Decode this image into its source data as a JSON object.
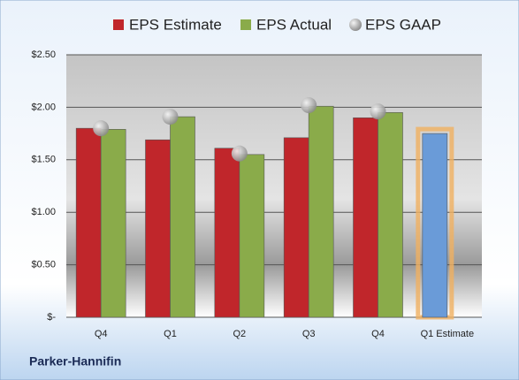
{
  "chart_data": {
    "type": "bar",
    "categories": [
      "Q4",
      "Q1",
      "Q2",
      "Q3",
      "Q4",
      "Q1 Estimate"
    ],
    "series": [
      {
        "name": "EPS Estimate",
        "color": "#c0262b",
        "colors": [
          "#c0262b",
          "#c0262b",
          "#c0262b",
          "#c0262b",
          "#c0262b",
          "#6a9bd8"
        ],
        "values": [
          1.8,
          1.69,
          1.61,
          1.71,
          1.9,
          1.75
        ]
      },
      {
        "name": "EPS Actual",
        "color": "#8aab4a",
        "values": [
          1.79,
          1.91,
          1.55,
          2.01,
          1.95,
          null
        ]
      },
      {
        "name": "EPS GAAP",
        "color": "#a8a8a8",
        "style": "marker",
        "values": [
          1.8,
          1.91,
          1.56,
          2.02,
          1.96,
          null
        ]
      }
    ],
    "ylim": [
      0,
      2.5
    ],
    "yticks": [
      {
        "value": 0,
        "label": "$-"
      },
      {
        "value": 0.5,
        "label": "$0.50"
      },
      {
        "value": 1,
        "label": "$1.00"
      },
      {
        "value": 1.5,
        "label": "$1.50"
      },
      {
        "value": 2,
        "label": "$2.00"
      },
      {
        "value": 2.5,
        "label": "$2.50"
      }
    ],
    "grid": true,
    "legend": "top",
    "footer": "Parker-Hannifin"
  }
}
